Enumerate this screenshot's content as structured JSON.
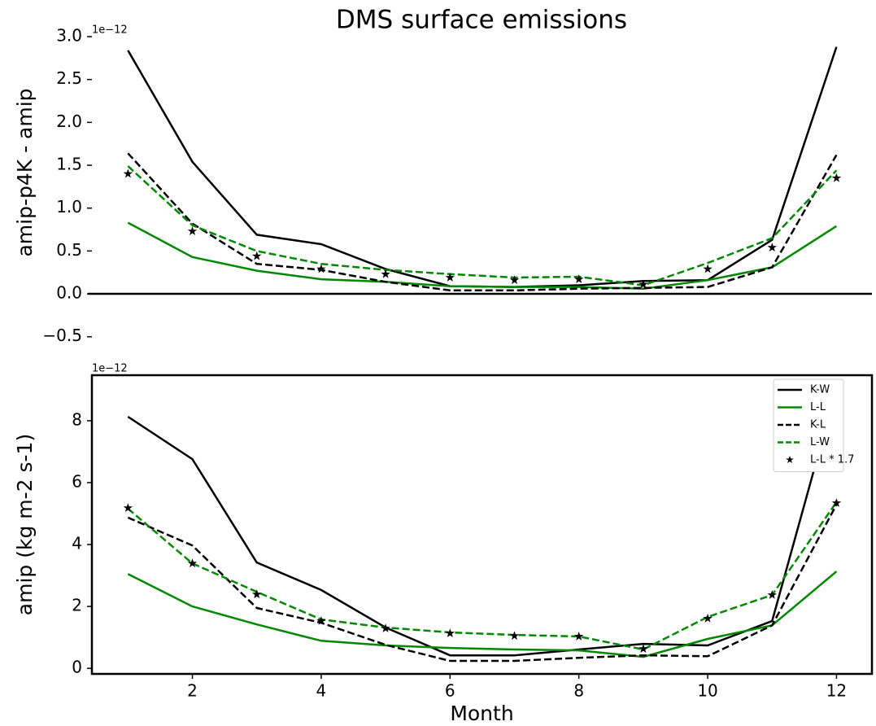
{
  "chart_data": [
    {
      "type": "line",
      "title": "DMS surface emissions",
      "y_label": "amip-p4K - amip",
      "offset_text": "1e−12",
      "x": [
        1,
        2,
        3,
        4,
        5,
        6,
        7,
        8,
        9,
        10,
        11,
        12
      ],
      "xlim": [
        0.44,
        12.55
      ],
      "ylim": [
        -0.55,
        3.0
      ],
      "yticks": [
        {
          "value": -0.5,
          "label": "−0.5"
        },
        {
          "value": 0,
          "label": "0.0"
        },
        0.5,
        {
          "value": 1,
          "label": "1.0"
        },
        1.5,
        {
          "value": 2,
          "label": "2.0"
        },
        2.5,
        {
          "value": 3,
          "label": "3.0"
        }
      ],
      "hline": 0,
      "frame": false,
      "series": [
        {
          "name": "K-W",
          "color": "#000000",
          "style": "solid",
          "values": [
            2.84,
            1.54,
            0.69,
            0.58,
            0.29,
            0.09,
            0.08,
            0.1,
            0.15,
            0.16,
            0.63,
            2.88
          ]
        },
        {
          "name": "L-L",
          "color": "#008800",
          "style": "solid",
          "values": [
            0.83,
            0.43,
            0.27,
            0.17,
            0.14,
            0.09,
            0.08,
            0.08,
            0.06,
            0.16,
            0.31,
            0.79
          ]
        },
        {
          "name": "K-L",
          "color": "#000000",
          "style": "dashed",
          "values": [
            1.64,
            0.82,
            0.35,
            0.28,
            0.14,
            0.04,
            0.04,
            0.06,
            0.07,
            0.08,
            0.31,
            1.62
          ]
        },
        {
          "name": "L-W",
          "color": "#008800",
          "style": "dashed",
          "values": [
            1.49,
            0.8,
            0.5,
            0.35,
            0.28,
            0.23,
            0.19,
            0.2,
            0.1,
            0.36,
            0.65,
            1.44
          ]
        },
        {
          "name": "L-L * 1.7",
          "color": "#000000",
          "style": "star",
          "values": [
            1.4,
            0.73,
            0.44,
            0.29,
            0.23,
            0.19,
            0.16,
            0.17,
            0.11,
            0.29,
            0.54,
            1.35
          ]
        }
      ]
    },
    {
      "type": "line",
      "x_label": "Month",
      "y_label": "amip (kg m-2 s-1)",
      "offset_text": "1e−12",
      "x": [
        1,
        2,
        3,
        4,
        5,
        6,
        7,
        8,
        9,
        10,
        11,
        12
      ],
      "xlim": [
        0.44,
        12.55
      ],
      "ylim": [
        -0.18,
        9.47
      ],
      "xticks": [
        2,
        4,
        6,
        8,
        10,
        12
      ],
      "yticks": [
        0,
        2,
        4,
        6,
        8
      ],
      "frame": true,
      "legend": "upper right",
      "series": [
        {
          "name": "K-W",
          "color": "#000000",
          "style": "solid",
          "values": [
            8.13,
            6.76,
            3.42,
            2.53,
            1.32,
            0.42,
            0.42,
            0.61,
            0.79,
            0.74,
            1.53,
            9.03
          ]
        },
        {
          "name": "L-L",
          "color": "#008800",
          "style": "solid",
          "values": [
            3.05,
            2.0,
            1.42,
            0.89,
            0.74,
            0.66,
            0.61,
            0.58,
            0.37,
            0.95,
            1.39,
            3.13
          ]
        },
        {
          "name": "K-L",
          "color": "#000000",
          "style": "dashed",
          "values": [
            4.87,
            3.97,
            1.95,
            1.47,
            0.76,
            0.24,
            0.24,
            0.34,
            0.42,
            0.39,
            1.39,
            5.29
          ]
        },
        {
          "name": "L-W",
          "color": "#008800",
          "style": "dashed",
          "values": [
            5.16,
            3.39,
            2.47,
            1.58,
            1.32,
            1.16,
            1.08,
            1.03,
            0.61,
            1.66,
            2.37,
            5.37
          ]
        },
        {
          "name": "L-L * 1.7",
          "color": "#000000",
          "style": "star",
          "values": [
            5.18,
            3.39,
            2.39,
            1.53,
            1.29,
            1.13,
            1.05,
            1.03,
            0.63,
            1.61,
            2.37,
            5.34
          ]
        }
      ]
    }
  ]
}
